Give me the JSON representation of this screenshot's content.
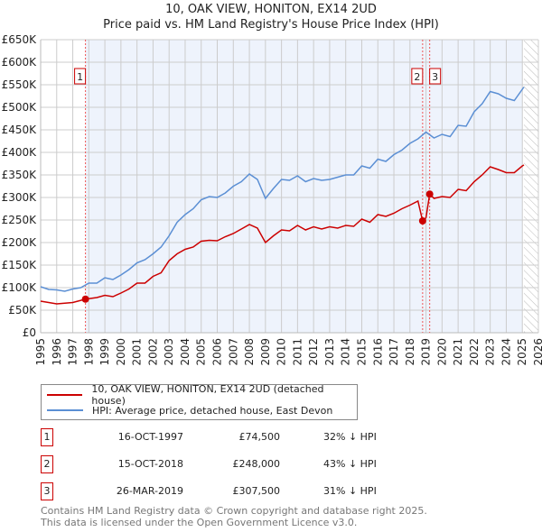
{
  "chart_data": {
    "type": "line",
    "title": "10, OAK VIEW, HONITON, EX14 2UD",
    "subtitle": "Price paid vs. HM Land Registry's House Price Index (HPI)",
    "xlim": [
      1995,
      2026
    ],
    "ylim": [
      0,
      650000
    ],
    "y_ticks": [
      "£0",
      "£50K",
      "£100K",
      "£150K",
      "£200K",
      "£250K",
      "£300K",
      "£350K",
      "£400K",
      "£450K",
      "£500K",
      "£550K",
      "£600K",
      "£650K"
    ],
    "x_ticks": [
      "1995",
      "1996",
      "1997",
      "1998",
      "1999",
      "2000",
      "2001",
      "2002",
      "2003",
      "2004",
      "2005",
      "2006",
      "2007",
      "2008",
      "2009",
      "2010",
      "2011",
      "2012",
      "2013",
      "2014",
      "2015",
      "2016",
      "2017",
      "2018",
      "2019",
      "2020",
      "2021",
      "2022",
      "2023",
      "2024",
      "2025",
      "2026"
    ],
    "series": [
      {
        "name": "10, OAK VIEW, HONITON, EX14 2UD (detached house)",
        "color": "#cc0000",
        "x": [
          1995,
          1996,
          1997,
          1997.79,
          1998.5,
          1999,
          1999.5,
          2000,
          2000.5,
          2001,
          2001.5,
          2002,
          2002.5,
          2003,
          2003.5,
          2004,
          2004.5,
          2005,
          2005.5,
          2006,
          2006.5,
          2007,
          2007.5,
          2008,
          2008.5,
          2009,
          2009.5,
          2010,
          2010.5,
          2011,
          2011.5,
          2012,
          2012.5,
          2013,
          2013.5,
          2014,
          2014.5,
          2015,
          2015.5,
          2016,
          2016.5,
          2017,
          2017.5,
          2018,
          2018.5,
          2018.79,
          2019.0,
          2019.23,
          2019.5,
          2020,
          2020.5,
          2021,
          2021.5,
          2022,
          2022.5,
          2023,
          2023.5,
          2024,
          2024.5,
          2025,
          2025.1
        ],
        "y": [
          70,
          64,
          67,
          74.5,
          78,
          83,
          80,
          88,
          97,
          110,
          110,
          125,
          133,
          160,
          175,
          185,
          190,
          203,
          205,
          204,
          213,
          220,
          230,
          240,
          232,
          200,
          215,
          228,
          226,
          238,
          228,
          235,
          230,
          235,
          232,
          238,
          236,
          252,
          245,
          262,
          258,
          265,
          275,
          283,
          292,
          248,
          255,
          307.5,
          298,
          302,
          300,
          318,
          315,
          335,
          350,
          368,
          362,
          355,
          355,
          370,
          372
        ]
      },
      {
        "name": "HPI: Average price, detached house, East Devon",
        "color": "#5b8fd4",
        "x": [
          1995,
          1995.5,
          1996,
          1996.5,
          1997,
          1997.5,
          1998,
          1998.5,
          1999,
          1999.5,
          2000,
          2000.5,
          2001,
          2001.5,
          2002,
          2002.5,
          2003,
          2003.5,
          2004,
          2004.5,
          2005,
          2005.5,
          2006,
          2006.5,
          2007,
          2007.5,
          2008,
          2008.5,
          2009,
          2009.5,
          2010,
          2010.5,
          2011,
          2011.5,
          2012,
          2012.5,
          2013,
          2013.5,
          2014,
          2014.5,
          2015,
          2015.5,
          2016,
          2016.5,
          2017,
          2017.5,
          2018,
          2018.5,
          2019,
          2019.5,
          2020,
          2020.5,
          2021,
          2021.5,
          2022,
          2022.5,
          2023,
          2023.5,
          2024,
          2024.5,
          2025,
          2025.1
        ],
        "y": [
          102,
          96,
          95,
          92,
          97,
          100,
          110,
          110,
          122,
          118,
          128,
          140,
          155,
          162,
          175,
          190,
          215,
          245,
          262,
          275,
          295,
          302,
          300,
          310,
          325,
          335,
          352,
          340,
          298,
          320,
          340,
          338,
          348,
          335,
          342,
          338,
          340,
          345,
          350,
          350,
          370,
          365,
          385,
          380,
          395,
          405,
          420,
          430,
          445,
          432,
          440,
          435,
          460,
          458,
          490,
          508,
          535,
          530,
          520,
          515,
          540,
          545
        ]
      }
    ],
    "transactions": [
      {
        "label": "1",
        "date": "16-OCT-1997",
        "x": 1997.79,
        "price": "£74,500",
        "value": 74.5,
        "hpi": "32% ↓ HPI"
      },
      {
        "label": "2",
        "date": "15-OCT-2018",
        "x": 2018.79,
        "price": "£248,000",
        "value": 248,
        "hpi": "43% ↓ HPI"
      },
      {
        "label": "3",
        "date": "26-MAR-2019",
        "x": 2019.23,
        "price": "£307,500",
        "value": 307.5,
        "hpi": "31% ↓ HPI"
      }
    ],
    "y_units": "thousands GBP",
    "shaded_range": [
      1997.79,
      2025.0
    ],
    "hatched_from": 2025.1,
    "grid": true,
    "legend": "bottom"
  },
  "footer": [
    "Contains HM Land Registry data © Crown copyright and database right 2025.",
    "This data is licensed under the Open Government Licence v3.0."
  ]
}
